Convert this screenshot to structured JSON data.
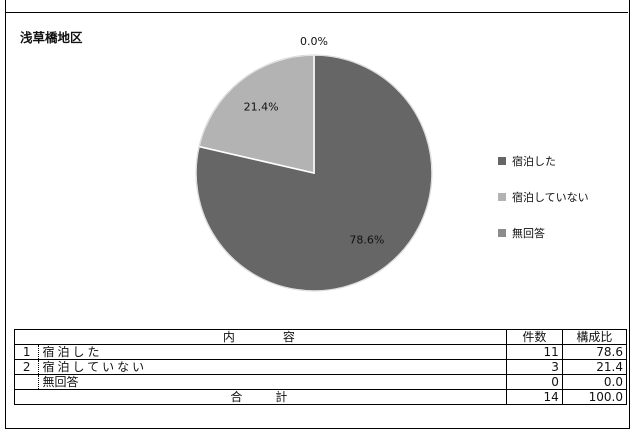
{
  "chart_data": {
    "type": "pie",
    "title": "浅草橋地区",
    "slices": [
      {
        "name": "宿泊した",
        "value": 78.6,
        "label": "78.6%",
        "color": "#666666"
      },
      {
        "name": "宿泊していない",
        "value": 21.4,
        "label": "21.4%",
        "color": "#b3b3b3"
      },
      {
        "name": "無回答",
        "value": 0.0,
        "label": "0.0%",
        "color": "#8c8c8c"
      }
    ],
    "legend_position": "right"
  },
  "table": {
    "header": {
      "content": "内　　　容",
      "count": "件数",
      "ratio": "構成比"
    },
    "rows": [
      {
        "no": "1",
        "label": "宿泊した",
        "count": "11",
        "ratio": "78.6"
      },
      {
        "no": "2",
        "label": "宿泊していない",
        "count": "3",
        "ratio": "21.4"
      },
      {
        "no": "",
        "label": "無回答",
        "count": "0",
        "ratio": "0.0"
      }
    ],
    "total": {
      "label": "合　　計",
      "count": "14",
      "ratio": "100.0"
    }
  }
}
